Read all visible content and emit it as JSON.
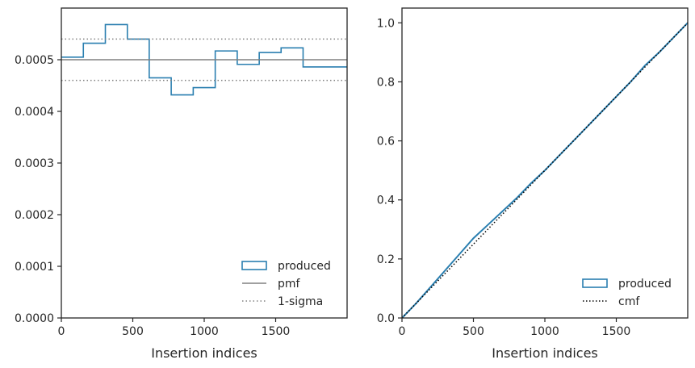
{
  "chart_data": [
    {
      "type": "histogram",
      "xlabel": "Insertion indices",
      "ylabel": "",
      "xlim": [
        0,
        2000
      ],
      "ylim": [
        0,
        0.0006
      ],
      "x_ticks": [
        0,
        500,
        1000,
        1500
      ],
      "y_ticks": [
        0.0,
        0.0001,
        0.0002,
        0.0003,
        0.0004,
        0.0005
      ],
      "y_tick_labels": [
        "0.0000",
        "0.0001",
        "0.0002",
        "0.0003",
        "0.0004",
        "0.0005"
      ],
      "series": [
        {
          "name": "produced",
          "style": "step",
          "color": "#2a7fb0",
          "bin_edges": [
            0,
            154,
            308,
            462,
            615,
            769,
            923,
            1077,
            1231,
            1385,
            1538,
            1692,
            1846,
            2000
          ],
          "values": [
            0.000505,
            0.000532,
            0.000568,
            0.00054,
            0.000465,
            0.000432,
            0.000446,
            0.000517,
            0.000491,
            0.000514,
            0.000523,
            0.000486,
            0.000486
          ]
        },
        {
          "name": "pmf",
          "style": "hline",
          "color": "#808080",
          "y": 0.0005
        },
        {
          "name": "1-sigma",
          "style": "hline-dotted",
          "color": "#808080",
          "y": [
            0.00046,
            0.00054
          ]
        }
      ],
      "legend": {
        "position": "lower-right",
        "entries": [
          "produced",
          "pmf",
          "1-sigma"
        ]
      }
    },
    {
      "type": "line",
      "xlabel": "Insertion indices",
      "ylabel": "",
      "xlim": [
        0,
        2000
      ],
      "ylim": [
        0,
        1.05
      ],
      "x_ticks": [
        0,
        500,
        1000,
        1500
      ],
      "y_ticks": [
        0.0,
        0.2,
        0.4,
        0.6,
        0.8,
        1.0
      ],
      "y_tick_labels": [
        "0.0",
        "0.2",
        "0.4",
        "0.6",
        "0.8",
        "1.0"
      ],
      "series": [
        {
          "name": "produced",
          "color": "#2a7fb0",
          "x": [
            0,
            100,
            200,
            300,
            400,
            500,
            600,
            700,
            800,
            900,
            1000,
            1100,
            1200,
            1300,
            1400,
            1500,
            1600,
            1700,
            1800,
            1900,
            2000
          ],
          "y": [
            0,
            0.05,
            0.105,
            0.16,
            0.215,
            0.27,
            0.315,
            0.36,
            0.405,
            0.455,
            0.5,
            0.55,
            0.6,
            0.65,
            0.7,
            0.75,
            0.8,
            0.855,
            0.9,
            0.95,
            1.0
          ]
        },
        {
          "name": "cmf",
          "color": "#000000",
          "dash": "dotted",
          "x": [
            0,
            2000
          ],
          "y": [
            0,
            1.0
          ]
        }
      ],
      "legend": {
        "position": "lower-right",
        "entries": [
          "produced",
          "cmf"
        ]
      }
    }
  ]
}
